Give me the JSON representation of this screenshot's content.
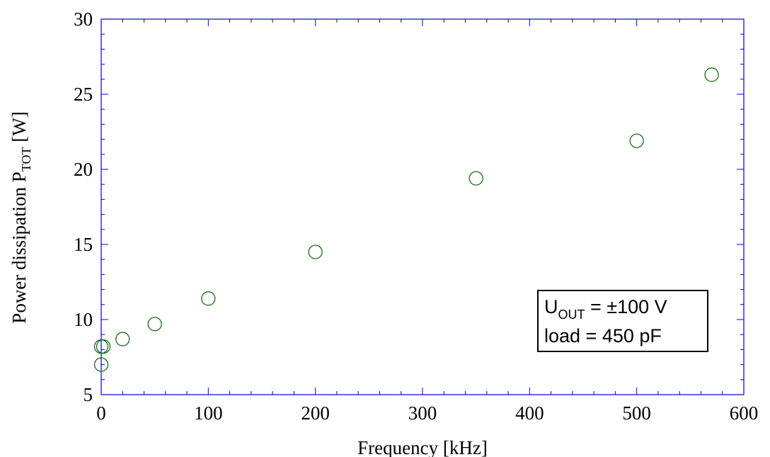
{
  "chart_data": {
    "type": "scatter",
    "x_axis": {
      "label": "Frequency  [kHz]",
      "range": [
        0,
        600
      ],
      "ticks": [
        "0",
        "100",
        "200",
        "300",
        "400",
        "500",
        "600"
      ]
    },
    "y_axis": {
      "label_main": "Power dissipation P",
      "label_sub": "TOT",
      "label_unit": " [W]",
      "range": [
        5,
        30
      ],
      "ticks": [
        "5",
        "10",
        "15",
        "20",
        "25",
        "30"
      ]
    },
    "series": [
      {
        "marker": "open-circle",
        "color": "#1a6b1a",
        "points": [
          {
            "x": 0,
            "y": 8.2
          },
          {
            "x": 0,
            "y": 7.0
          },
          {
            "x": 2,
            "y": 8.2
          },
          {
            "x": 20,
            "y": 8.7
          },
          {
            "x": 50,
            "y": 9.7
          },
          {
            "x": 100,
            "y": 11.4
          },
          {
            "x": 200,
            "y": 14.5
          },
          {
            "x": 350,
            "y": 19.4
          },
          {
            "x": 500,
            "y": 21.9
          },
          {
            "x": 570,
            "y": 26.3
          }
        ]
      }
    ],
    "grid": false,
    "frame_color": "#0000cc",
    "annotation": {
      "line1_main": "U",
      "line1_sub": "OUT",
      "line1_rest": " = ±100 V",
      "line2": "load = 450 pF"
    }
  }
}
